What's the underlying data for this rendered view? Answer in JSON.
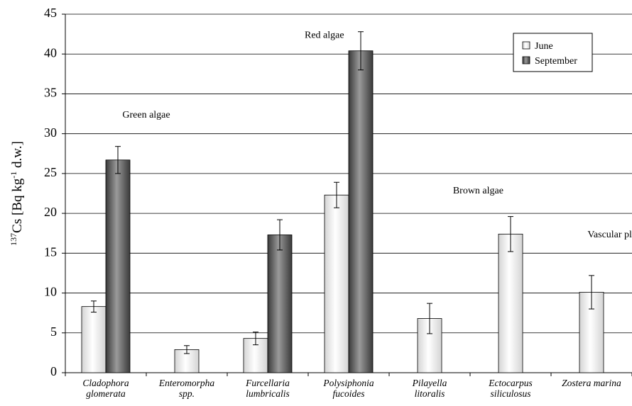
{
  "chart_data": {
    "type": "bar",
    "y_label": {
      "parts": [
        "137",
        "Cs [Bq kg",
        "-1",
        " d.w.]"
      ],
      "superscript": [
        true,
        false,
        true,
        false
      ]
    },
    "categories": [
      [
        "Cladophora",
        "glomerata"
      ],
      [
        "Enteromorpha",
        "spp."
      ],
      [
        "Furcellaria",
        "lumbricalis"
      ],
      [
        "Polysiphonia",
        "fucoides"
      ],
      [
        "Pilayella",
        "litoralis"
      ],
      [
        "Ectocarpus",
        "siliculosus"
      ],
      [
        "Zostera marina"
      ]
    ],
    "series": [
      {
        "name": "June",
        "color": "#d4d4d4",
        "values": [
          8.3,
          2.9,
          4.3,
          22.3,
          6.8,
          17.4,
          10.1
        ],
        "errors": [
          0.7,
          0.5,
          0.8,
          1.6,
          1.9,
          2.2,
          2.1
        ]
      },
      {
        "name": "September",
        "color": "#3a3a3a",
        "values": [
          26.7,
          null,
          17.3,
          40.4,
          null,
          null,
          null
        ],
        "errors": [
          1.7,
          null,
          1.9,
          2.4,
          null,
          null,
          null
        ]
      }
    ],
    "annotations": [
      {
        "text": "Green algae",
        "x": 0.5,
        "y": 32
      },
      {
        "text": "Red algae",
        "x": 2.7,
        "y": 42
      },
      {
        "text": "Brown algae",
        "x": 4.6,
        "y": 22.5
      },
      {
        "text": "Vascular plant",
        "x": 6.3,
        "y": 17
      }
    ],
    "ylim": [
      0,
      45
    ],
    "yticks": [
      0,
      5,
      10,
      15,
      20,
      25,
      30,
      35,
      40,
      45
    ],
    "grid": true,
    "legend": "top-right"
  }
}
